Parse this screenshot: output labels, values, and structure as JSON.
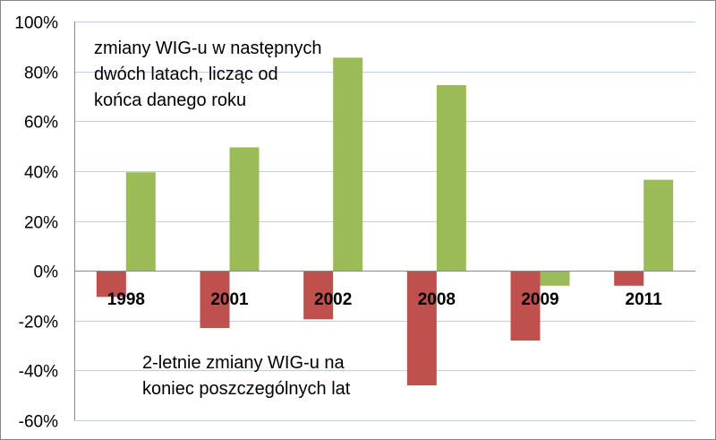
{
  "chart_data": {
    "type": "bar",
    "categories": [
      "1998",
      "2001",
      "2002",
      "2008",
      "2009",
      "2011"
    ],
    "series": [
      {
        "values": [
          -10.5,
          -23,
          -19.5,
          -46,
          -28,
          -6
        ],
        "color": "#C0504D"
      },
      {
        "values": [
          39.5,
          49.5,
          85.5,
          74.5,
          -6,
          36.5
        ],
        "color": "#9BBB59"
      }
    ],
    "annotations": [
      {
        "lines": [
          "zmiany WIG-u w następnych",
          "dwóch latach, licząc od",
          "końca danego roku"
        ]
      },
      {
        "lines": [
          "2-letnie zmiany WIG-u na",
          "koniec poszczególnych lat"
        ]
      }
    ],
    "y_ticks": [
      "100%",
      "80%",
      "60%",
      "40%",
      "20%",
      "0%",
      "-20%",
      "-40%",
      "-60%"
    ],
    "ylim": [
      -60,
      100
    ],
    "y_tick_values": [
      100,
      80,
      60,
      40,
      20,
      0,
      -20,
      -40,
      -60
    ],
    "grid": true,
    "legend": "none",
    "grid_color": "#BFD0E6",
    "axis_color": "#8A8A8A"
  }
}
